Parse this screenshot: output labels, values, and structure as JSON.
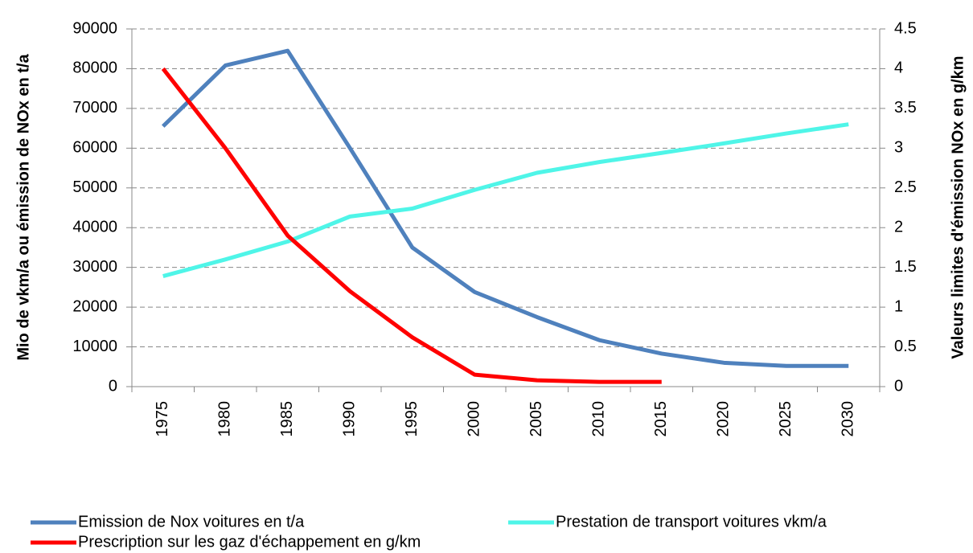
{
  "chart_data": {
    "type": "line",
    "ylabel": "Mio de vkm/a ou émission de NOx en t/a",
    "y2label": "Valeurs limites d'émission NOx en g/km",
    "categories": [
      "1975",
      "1980",
      "1985",
      "1990",
      "1995",
      "2000",
      "2005",
      "2010",
      "2015",
      "2020",
      "2025",
      "2030"
    ],
    "series": [
      {
        "name": "Emission de Nox voitures en t/a",
        "color": "#4f81bd",
        "values": [
          65500,
          80800,
          84500,
          60000,
          35000,
          23800,
          17500,
          11700,
          8300,
          6000,
          5200,
          5200
        ]
      },
      {
        "name": "Prestation de transport voitures vkm/a",
        "color": "#4ff5e8",
        "values": [
          27800,
          32000,
          36500,
          42800,
          44800,
          49500,
          53800,
          56500,
          58800,
          61200,
          63700,
          66000
        ]
      },
      {
        "name": "Prescription sur les gaz d'échappement en g/km",
        "color": "#ff0000",
        "axis": "y2",
        "values": [
          4,
          3,
          1.9,
          1.2,
          0.62,
          0.15,
          0.08,
          0.06,
          0.06,
          null,
          null,
          null
        ]
      }
    ],
    "ylim": [
      0,
      90000
    ],
    "yticks": [
      0,
      10000,
      20000,
      30000,
      40000,
      50000,
      60000,
      70000,
      80000,
      90000
    ],
    "y2lim": [
      0,
      4.5
    ],
    "y2ticks": [
      0,
      0.5,
      1,
      1.5,
      2,
      2.5,
      3,
      3.5,
      4,
      4.5
    ],
    "grid": true,
    "legend": "bottom"
  }
}
